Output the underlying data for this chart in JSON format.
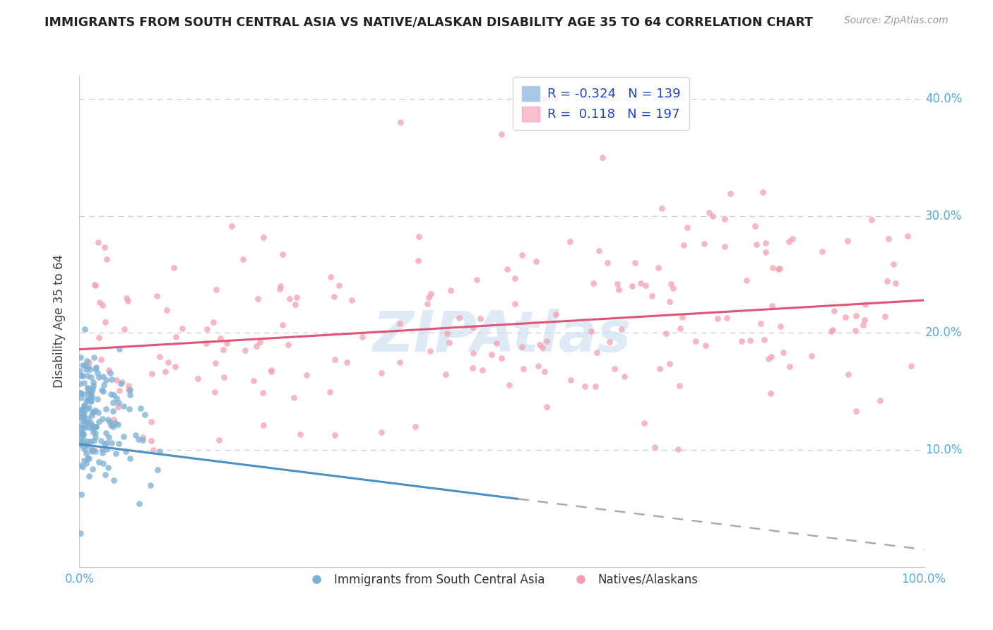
{
  "title": "IMMIGRANTS FROM SOUTH CENTRAL ASIA VS NATIVE/ALASKAN DISABILITY AGE 35 TO 64 CORRELATION CHART",
  "source_text": "Source: ZipAtlas.com",
  "watermark": "ZIPAtlas",
  "ylabel": "Disability Age 35 to 64",
  "xlim": [
    0.0,
    1.0
  ],
  "ylim": [
    0.0,
    0.42
  ],
  "blue_R": -0.324,
  "blue_N": 139,
  "pink_R": 0.118,
  "pink_N": 197,
  "blue_color": "#7BAFD4",
  "pink_color": "#F4A0B0",
  "blue_fill": "#A8C8E8",
  "pink_fill": "#F9C0CC",
  "trend_blue_color": "#4A90C4",
  "trend_pink_color": "#E05575",
  "trend_blue_dash_color": "#AAAAAA",
  "background_color": "#FFFFFF",
  "grid_color": "#CCCCCC",
  "title_color": "#222222",
  "axis_tick_color": "#55AADD",
  "legend_text_color": "#2244BB",
  "watermark_color": "#C8DCF0",
  "source_color": "#999999"
}
